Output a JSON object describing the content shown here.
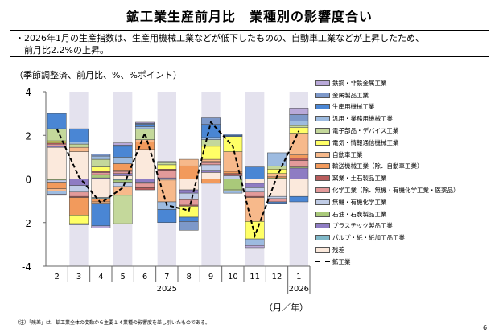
{
  "title": "鉱工業生産前月比　業種別の影響度合い",
  "summary_line1": "・2026年1月の生産指数は、生産用機械工業などが低下したものの、自動車工業などが上昇したため、",
  "summary_line2": "　前月比2.2%の上昇。",
  "subtitle": "（季節調整済、前月比、%、%ポイント）",
  "unit_label": "（月／年）",
  "note": "（注）「残差」は、鉱工業全体の変動から主要１４業種の影響度を差し引いたものである。",
  "page_number": "6",
  "chart_data": {
    "type": "bar",
    "stacked": true,
    "ylim": [
      -4,
      4
    ],
    "yticks": [
      "4",
      "2",
      "0",
      "-2",
      "-4"
    ],
    "categories": [
      "2",
      "3",
      "4",
      "5",
      "6",
      "7",
      "8",
      "9",
      "10",
      "11",
      "12",
      "1"
    ],
    "year_labels": [
      "2025",
      "2026"
    ],
    "series": [
      {
        "name": "鉄鋼・非鉄金属工業",
        "color": "#b9a9d9",
        "values": [
          -0.05,
          0,
          -0.1,
          0.1,
          0.05,
          0.05,
          0,
          0,
          0,
          -0.1,
          0,
          0.3
        ]
      },
      {
        "name": "金属製品工業",
        "color": "#7d98c9",
        "values": [
          0,
          -0.05,
          0.1,
          0.05,
          0.05,
          0,
          -0.4,
          0.3,
          0.05,
          0,
          0,
          0.3
        ]
      },
      {
        "name": "生産用機械工業",
        "color": "#4a86d4",
        "values": [
          0.7,
          0.6,
          -1.0,
          0.5,
          0.1,
          -0.6,
          -0.2,
          0.6,
          0.05,
          0.55,
          -0.1,
          -0.25
        ]
      },
      {
        "name": "汎用・業務用機械工業",
        "color": "#9dbbe0",
        "values": [
          -0.15,
          0.1,
          0.15,
          0.3,
          0.1,
          -0.35,
          0,
          0.1,
          -0.1,
          -0.3,
          0.6,
          0.2
        ]
      },
      {
        "name": "電子部品・デバイス工業",
        "color": "#c4d89b",
        "values": [
          0.55,
          0.15,
          0.35,
          -1.3,
          0.5,
          0.1,
          0,
          0.3,
          -0.05,
          0,
          0.15,
          0.1
        ]
      },
      {
        "name": "電気・情報通信機械工業",
        "color": "#ffff66",
        "values": [
          0.1,
          -0.4,
          0.2,
          0,
          0,
          0.2,
          -0.5,
          0.6,
          0.7,
          -0.8,
          0.2,
          0.25
        ]
      },
      {
        "name": "自動車工業",
        "color": "#f7b98b",
        "values": [
          -0.1,
          0.2,
          -0.1,
          -0.4,
          0.1,
          -1.0,
          0.3,
          0.1,
          0.9,
          -1.1,
          0.15,
          1.0
        ]
      },
      {
        "name": "輸送機械工業（除．自動車工業）",
        "color": "#f29a5c",
        "values": [
          -0.3,
          -0.8,
          -0.15,
          0.3,
          0.35,
          0,
          0.6,
          -0.2,
          0.1,
          0,
          0.05,
          0.15
        ]
      },
      {
        "name": "窯業・土石製品工業",
        "color": "#b85c5c",
        "values": [
          0.05,
          -0.05,
          0.05,
          0.05,
          -0.1,
          0.05,
          -0.05,
          0.05,
          0.05,
          -0.05,
          0,
          0.1
        ]
      },
      {
        "name": "化学工業（除．無機・有機化学工業・医薬品）",
        "color": "#e39a9a",
        "values": [
          0.1,
          -0.2,
          0.1,
          0.1,
          -0.2,
          0.35,
          -0.25,
          0.1,
          0.05,
          -0.2,
          -0.15,
          0.3
        ]
      },
      {
        "name": "無機・有機化学工業",
        "color": "#c0cce6",
        "values": [
          -0.1,
          -0.3,
          0,
          -0.2,
          -0.05,
          0,
          -0.3,
          0.25,
          0.15,
          -0.2,
          -0.1,
          0
        ]
      },
      {
        "name": "石油・石炭製品工業",
        "color": "#a9c97a",
        "values": [
          -0.05,
          0,
          0.15,
          -0.1,
          0,
          0,
          0,
          0,
          -0.5,
          0,
          0.05,
          0.05
        ]
      },
      {
        "name": "プラスチック製品工業",
        "color": "#8e7cc3",
        "values": [
          0.05,
          -0.3,
          0.05,
          0.1,
          -0.15,
          0.05,
          -0.15,
          0.1,
          0,
          -0.2,
          0,
          0.5
        ]
      },
      {
        "name": "パルプ・紙・紙加工品工業",
        "color": "#7fb8c8",
        "values": [
          0,
          0,
          -0.05,
          -0.05,
          0,
          0,
          0,
          0,
          0,
          0,
          0,
          0
        ]
      },
      {
        "name": "残差",
        "color": "#fbe9dc",
        "values": [
          1.45,
          1.25,
          -0.85,
          0.15,
          1.35,
          -0.05,
          -0.5,
          0.3,
          0,
          -0.2,
          -0.8,
          -0.8
        ]
      }
    ],
    "line": {
      "name": "鉱工業",
      "color": "#000000",
      "style": "dashed",
      "values": [
        2.3,
        0.1,
        -1.1,
        -0.4,
        2.1,
        -1.2,
        -1.45,
        2.6,
        1.5,
        -2.6,
        0.1,
        2.2
      ]
    },
    "shaded_columns": [
      "3",
      "5",
      "7",
      "9",
      "11",
      "1"
    ],
    "legend_position": "right"
  }
}
